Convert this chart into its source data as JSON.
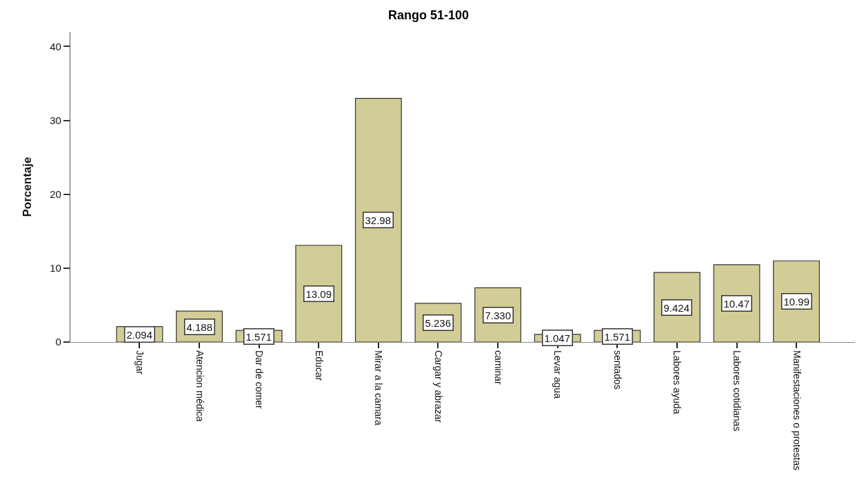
{
  "chart_data": {
    "type": "bar",
    "title": "Rango 51-100",
    "ylabel": "Porcentaje",
    "categories": [
      "Jugar",
      "Atencion médica",
      "Dar de comer",
      "Educar",
      "Mirar a la camara",
      "Cargar y abrazar",
      "caminar",
      "Levar agua",
      "sentados",
      "Labores ayuda",
      "Labores cotidianas",
      "Manifestaciones o protestas"
    ],
    "values": [
      2.094,
      4.188,
      1.571,
      13.09,
      32.98,
      5.236,
      7.33,
      1.047,
      1.571,
      9.424,
      10.47,
      10.99
    ],
    "value_labels": [
      "2.094",
      "4.188",
      "1.571",
      "13.09",
      "32.98",
      "5.236",
      "7.330",
      "1.047",
      "1.571",
      "9.424",
      "10.47",
      "10.99"
    ],
    "color": "#d2cc96",
    "ylim": [
      0,
      42
    ],
    "yticks": [
      0,
      10,
      20,
      30,
      40
    ],
    "grid": false,
    "legend": false
  }
}
